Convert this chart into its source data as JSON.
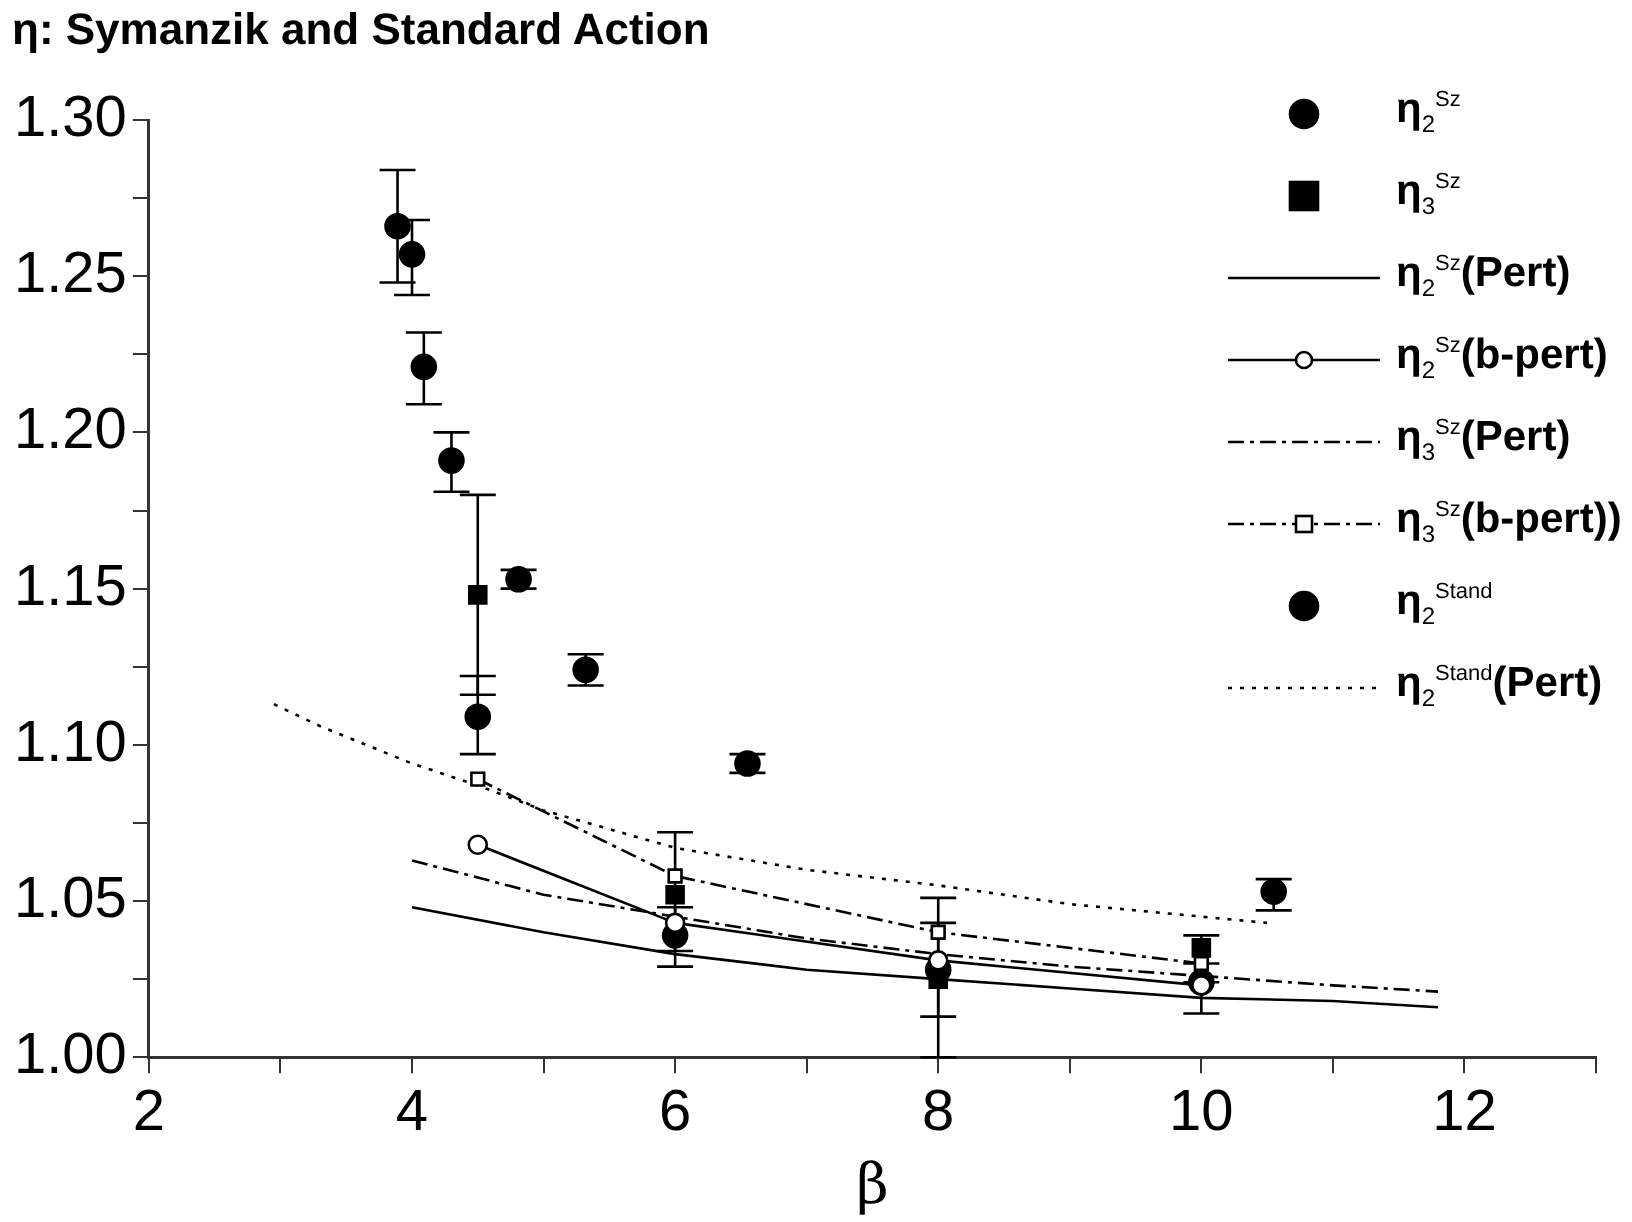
{
  "chart_data": {
    "type": "scatter",
    "title": "η: Symanzik and Standard Action",
    "xlabel": "β",
    "xlim": [
      2,
      13
    ],
    "xticks": [
      2,
      {
        "value": 3,
        "label": null
      },
      4,
      {
        "value": 5,
        "label": null
      },
      6,
      {
        "value": 7,
        "label": null
      },
      8,
      {
        "value": 9,
        "label": null
      },
      10,
      {
        "value": 11,
        "label": null
      },
      12,
      {
        "value": 13,
        "label": null
      }
    ],
    "ylim": [
      1.0,
      1.3
    ],
    "yticks": [
      {
        "value": 1.0,
        "label": "1.00"
      },
      {
        "value": 1.025,
        "label": null
      },
      {
        "value": 1.05,
        "label": "1.05"
      },
      {
        "value": 1.075,
        "label": null
      },
      {
        "value": 1.1,
        "label": "1.10"
      },
      {
        "value": 1.125,
        "label": null
      },
      {
        "value": 1.15,
        "label": "1.15"
      },
      {
        "value": 1.175,
        "label": null
      },
      {
        "value": 1.2,
        "label": "1.20"
      },
      {
        "value": 1.225,
        "label": null
      },
      {
        "value": 1.25,
        "label": "1.25"
      },
      {
        "value": 1.275,
        "label": null
      },
      {
        "value": 1.3,
        "label": "1.30"
      }
    ],
    "grid": false,
    "legend": "top right",
    "series": [
      {
        "name": "η$_{2}$$^{Sz}$",
        "type": "scatter",
        "marker": "circle",
        "color": "#000000",
        "x": [
          4.5,
          6,
          8,
          10
        ],
        "values": [
          1.109,
          1.039,
          1.028,
          1.024
        ],
        "errors": [
          [
            1.097,
            1.122
          ],
          [
            1.029,
            1.048
          ],
          [
            1.013,
            1.043
          ],
          [
            1.014,
            1.024
          ]
        ]
      },
      {
        "name": "η$_{3}$$^{Sz}$",
        "type": "scatter",
        "marker": "square",
        "color": "#000000",
        "x": [
          4.5,
          6,
          8,
          10
        ],
        "values": [
          1.148,
          1.052,
          1.025,
          1.035
        ],
        "errors": [
          [
            1.116,
            1.18
          ],
          [
            1.034,
            1.072
          ],
          [
            1.0,
            1.051
          ],
          [
            1.03,
            1.039
          ]
        ]
      },
      {
        "name": "η$_{2}$$^{Sz}$(Pert)",
        "type": "line",
        "marker": "none",
        "line_style": "solid",
        "color": "#000000",
        "x": [
          4,
          5,
          6,
          7,
          8,
          9,
          10,
          11,
          11.8
        ],
        "values": [
          1.048,
          1.04,
          1.033,
          1.028,
          1.025,
          1.022,
          1.019,
          1.018,
          1.016
        ]
      },
      {
        "name": "η$_{2}$$^{Sz}$(b-pert)",
        "type": "line",
        "marker": "circle",
        "line_style": "solid",
        "color": "#000000",
        "x": [
          4.5,
          6,
          8,
          10
        ],
        "values": [
          1.068,
          1.043,
          1.031,
          1.023
        ]
      },
      {
        "name": "η$_{3}$$^{Sz}$(Pert)",
        "type": "line",
        "marker": "none",
        "line_style": "dashed",
        "color": "#000000",
        "x": [
          4,
          5,
          6,
          7,
          8,
          9,
          10,
          11,
          11.8
        ],
        "values": [
          1.063,
          1.052,
          1.045,
          1.038,
          1.033,
          1.029,
          1.026,
          1.023,
          1.021
        ]
      },
      {
        "name": "η$_{3}$$^{Sz}$(b-pert))",
        "type": "line",
        "marker": "square",
        "line_style": "dashed",
        "color": "#000000",
        "x": [
          4.5,
          6,
          8,
          10
        ],
        "values": [
          1.089,
          1.058,
          1.04,
          1.03
        ]
      },
      {
        "name": "η$_{2}$$^{Stand}$",
        "type": "scatter",
        "marker": "circle",
        "color": "#000000",
        "x": [
          3.89,
          4.0,
          4.09,
          4.3,
          4.81,
          5.32,
          6.55,
          10.55
        ],
        "values": [
          1.266,
          1.257,
          1.221,
          1.191,
          1.153,
          1.124,
          1.094,
          1.053
        ],
        "errors": [
          [
            1.248,
            1.284
          ],
          [
            1.244,
            1.268
          ],
          [
            1.209,
            1.232
          ],
          [
            1.181,
            1.2
          ],
          [
            1.15,
            1.156
          ],
          [
            1.119,
            1.129
          ],
          [
            1.091,
            1.097
          ],
          [
            1.047,
            1.057
          ]
        ]
      },
      {
        "name": "η$_{2}$$^{Stand}$(Pert)",
        "type": "line",
        "marker": "none",
        "line_style": "dotted",
        "color": "#000000",
        "x": [
          2.95,
          3.3,
          4,
          4.5,
          5,
          6,
          7,
          8,
          9,
          10,
          10.5
        ],
        "values": [
          1.113,
          1.106,
          1.094,
          1.087,
          1.079,
          1.067,
          1.06,
          1.055,
          1.049,
          1.045,
          1.043
        ]
      }
    ]
  }
}
